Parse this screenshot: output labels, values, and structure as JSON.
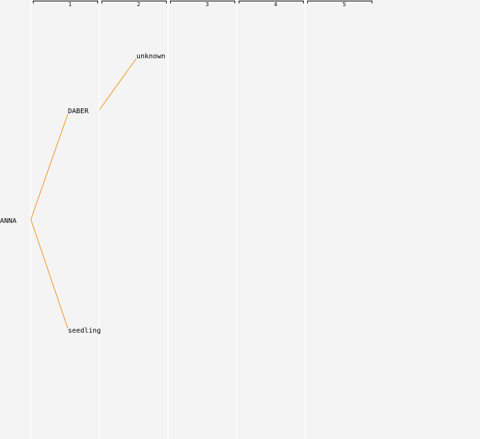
{
  "generations": [
    "1",
    "2",
    "3",
    "4",
    "5"
  ],
  "nodes": [
    {
      "label": "ANNA"
    },
    {
      "label": "DABER"
    },
    {
      "label": "seedling"
    },
    {
      "label": "unknown"
    }
  ]
}
